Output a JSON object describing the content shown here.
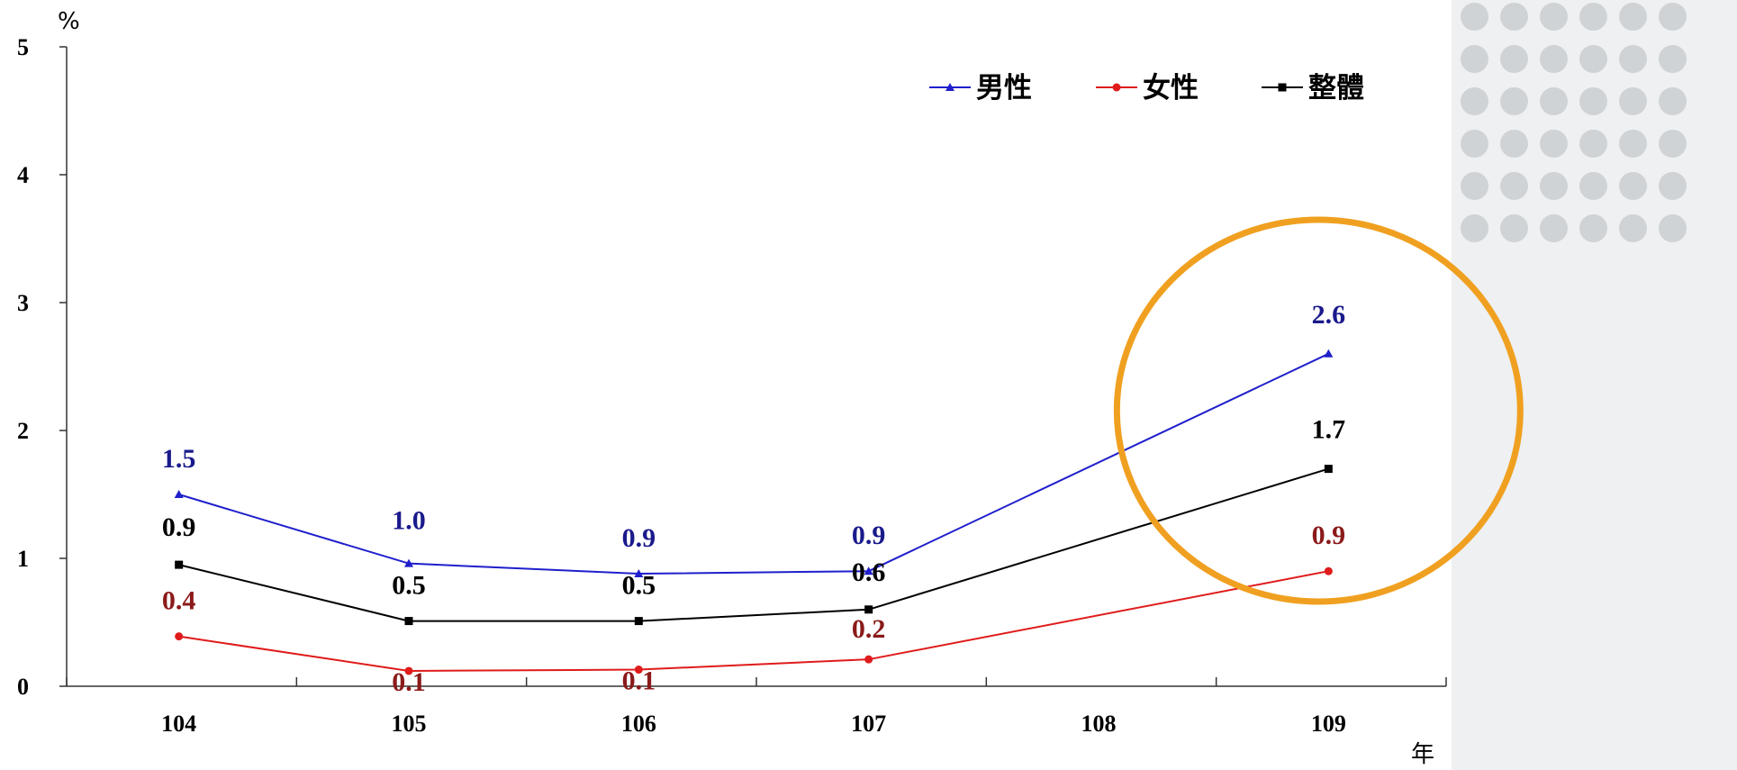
{
  "chart_data": {
    "type": "line",
    "y_unit": "%",
    "x_unit": "年",
    "categories": [
      "104",
      "105",
      "106",
      "107",
      "108",
      "109"
    ],
    "ylim": [
      0,
      5
    ],
    "yticks": [
      "0",
      "1",
      "2",
      "3",
      "4",
      "5"
    ],
    "grid": false,
    "legend_position": "top-right",
    "series": [
      {
        "name": "男性",
        "color": "#1f1fcc",
        "label_color": "#1a1a8c",
        "marker": "triangle",
        "x": [
          "104",
          "105",
          "106",
          "107",
          "109"
        ],
        "values": [
          1.5,
          0.96,
          0.88,
          0.9,
          2.6
        ],
        "labels": [
          "1.5",
          "1.0",
          "0.9",
          "0.9",
          "2.6"
        ]
      },
      {
        "name": "女性",
        "color": "#e01b1b",
        "label_color": "#8b1a1a",
        "marker": "circle",
        "x": [
          "104",
          "105",
          "106",
          "107",
          "109"
        ],
        "values": [
          0.39,
          0.12,
          0.13,
          0.21,
          0.9
        ],
        "labels": [
          "0.4",
          "0.1",
          "0.1",
          "0.2",
          "0.9"
        ]
      },
      {
        "name": "整體",
        "color": "#000000",
        "label_color": "#000000",
        "marker": "square",
        "x": [
          "104",
          "105",
          "106",
          "107",
          "109"
        ],
        "values": [
          0.95,
          0.51,
          0.51,
          0.6,
          1.7
        ],
        "labels": [
          "0.9",
          "0.5",
          "0.5",
          "0.6",
          "1.7"
        ]
      }
    ],
    "highlight": {
      "shape": "circle",
      "color": "#f0a020",
      "target": "109"
    }
  },
  "decoration": {
    "dot_color": "#cfd3d6",
    "panel_color": "#eef0f1"
  }
}
